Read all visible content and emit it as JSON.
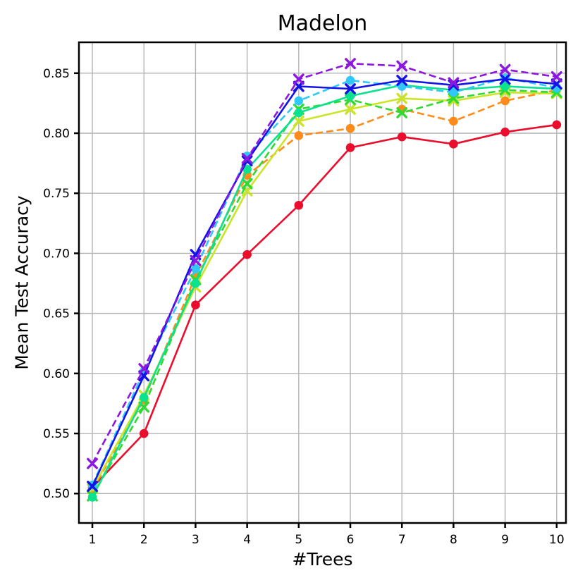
{
  "title": "Madelon",
  "chart_data": {
    "type": "line",
    "title": "Madelon",
    "xlabel": "#Trees",
    "ylabel": "Mean Test Accuracy",
    "grid": true,
    "legend": "none",
    "x": [
      1,
      2,
      3,
      4,
      5,
      6,
      7,
      8,
      9,
      10
    ],
    "xticks": [
      "1",
      "2",
      "3",
      "4",
      "5",
      "6",
      "7",
      "8",
      "9",
      "10"
    ],
    "yticks": [
      "0.50",
      "0.55",
      "0.60",
      "0.65",
      "0.70",
      "0.75",
      "0.80",
      "0.85"
    ],
    "ytick_values": [
      0.5,
      0.55,
      0.6,
      0.65,
      0.7,
      0.75,
      0.8,
      0.85
    ],
    "xlim": [
      0.74,
      10.18
    ],
    "ylim": [
      0.4755,
      0.8757
    ],
    "colors": {
      "red": "#ea0d2c",
      "orange": "#ff8c1a",
      "yellow": "#cbe426",
      "green": "#31da31",
      "springgreen": "#0ae28f",
      "cyan": "#30c9f7",
      "blue": "#1313e8",
      "purple": "#8e17e0",
      "grid": "#b4b4b4",
      "spine": "#000000"
    },
    "series": [
      {
        "name": "red-solid-circle",
        "color": "#ea0d2c",
        "line_style": "solid",
        "marker": "circle",
        "values": [
          0.505,
          0.55,
          0.657,
          0.699,
          0.74,
          0.788,
          0.797,
          0.791,
          0.801,
          0.807
        ]
      },
      {
        "name": "orange-dashed-circle",
        "color": "#ff8c1a",
        "line_style": "dashed",
        "marker": "circle",
        "values": [
          0.503,
          0.578,
          0.681,
          0.765,
          0.798,
          0.804,
          0.82,
          0.81,
          0.827,
          0.836
        ]
      },
      {
        "name": "yellow-solid-x",
        "color": "#cbe426",
        "line_style": "solid",
        "marker": "x",
        "values": [
          0.504,
          0.582,
          0.672,
          0.752,
          0.81,
          0.82,
          0.829,
          0.827,
          0.834,
          0.833
        ]
      },
      {
        "name": "green-dashed-x",
        "color": "#31da31",
        "line_style": "dashed",
        "marker": "x",
        "values": [
          0.498,
          0.572,
          0.678,
          0.758,
          0.82,
          0.828,
          0.817,
          0.829,
          0.836,
          0.834
        ]
      },
      {
        "name": "springgreen-solid-circle",
        "color": "#0ae28f",
        "line_style": "solid",
        "marker": "circle",
        "values": [
          0.497,
          0.58,
          0.675,
          0.77,
          0.817,
          0.831,
          0.84,
          0.836,
          0.839,
          0.837
        ]
      },
      {
        "name": "cyan-dashed-circle",
        "color": "#30c9f7",
        "line_style": "dashed",
        "marker": "circle",
        "values": [
          0.507,
          0.602,
          0.687,
          0.781,
          0.827,
          0.844,
          0.839,
          0.834,
          0.846,
          0.838
        ]
      },
      {
        "name": "blue-solid-x",
        "color": "#1313e8",
        "line_style": "solid",
        "marker": "x",
        "values": [
          0.506,
          0.598,
          0.699,
          0.777,
          0.839,
          0.837,
          0.844,
          0.84,
          0.845,
          0.841
        ]
      },
      {
        "name": "purple-dashed-x",
        "color": "#8e17e0",
        "line_style": "dashed",
        "marker": "x",
        "values": [
          0.525,
          0.604,
          0.694,
          0.779,
          0.845,
          0.858,
          0.856,
          0.842,
          0.853,
          0.847
        ]
      }
    ]
  }
}
